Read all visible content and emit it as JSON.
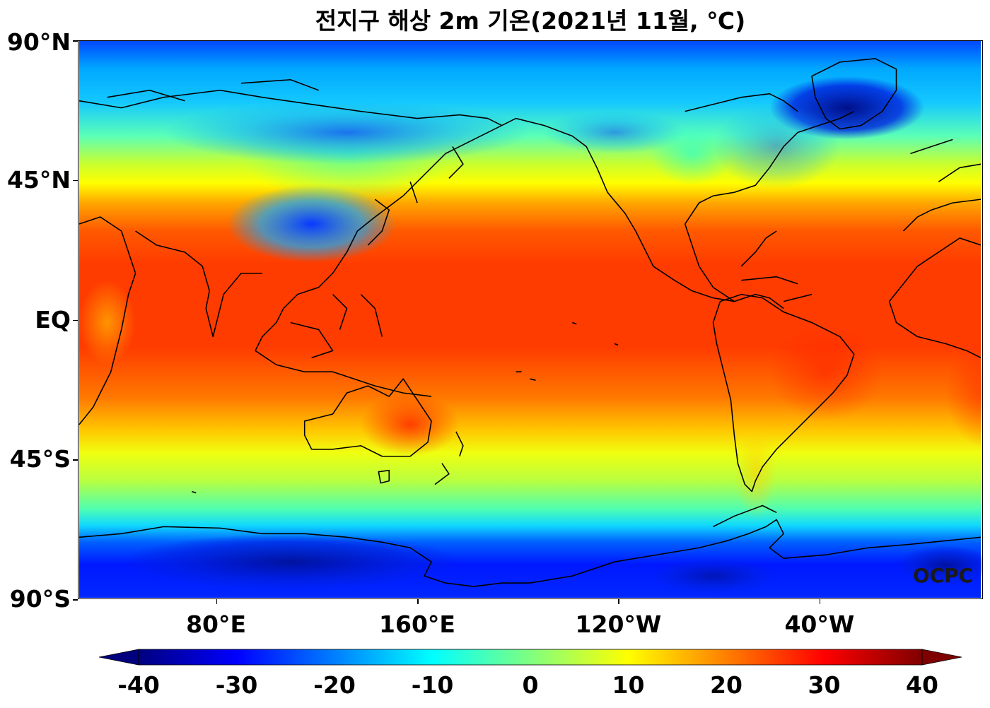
{
  "title": "전지구 해상 2m 기온(2021년 11월, ℃)",
  "watermark": "OCPC",
  "lat_axis": {
    "labels": [
      "90°N",
      "45°N",
      "EQ",
      "45°S",
      "90°S"
    ],
    "values": [
      90,
      45,
      0,
      -45,
      -90
    ]
  },
  "lon_axis": {
    "labels": [
      "80°E",
      "160°E",
      "120°W",
      "40°W"
    ],
    "values": [
      80,
      160,
      240,
      320
    ],
    "range": [
      25,
      385
    ]
  },
  "colorbar": {
    "labels": [
      "-40",
      "-30",
      "-20",
      "-10",
      "0",
      "10",
      "20",
      "30",
      "40"
    ],
    "min": -40,
    "max": 40,
    "extend": "both",
    "colormap": "jet",
    "colors": [
      "#00007f",
      "#0000ff",
      "#007fff",
      "#00ffff",
      "#7fff7f",
      "#ffff00",
      "#ff7f00",
      "#ff0000",
      "#7f0000"
    ]
  },
  "colors": {
    "antarctic": "#0018ff",
    "greenland": "#00108c",
    "tropics": "#ff3c00",
    "mid_latitudes": "#f0ff10",
    "coastline": "#000000"
  }
}
